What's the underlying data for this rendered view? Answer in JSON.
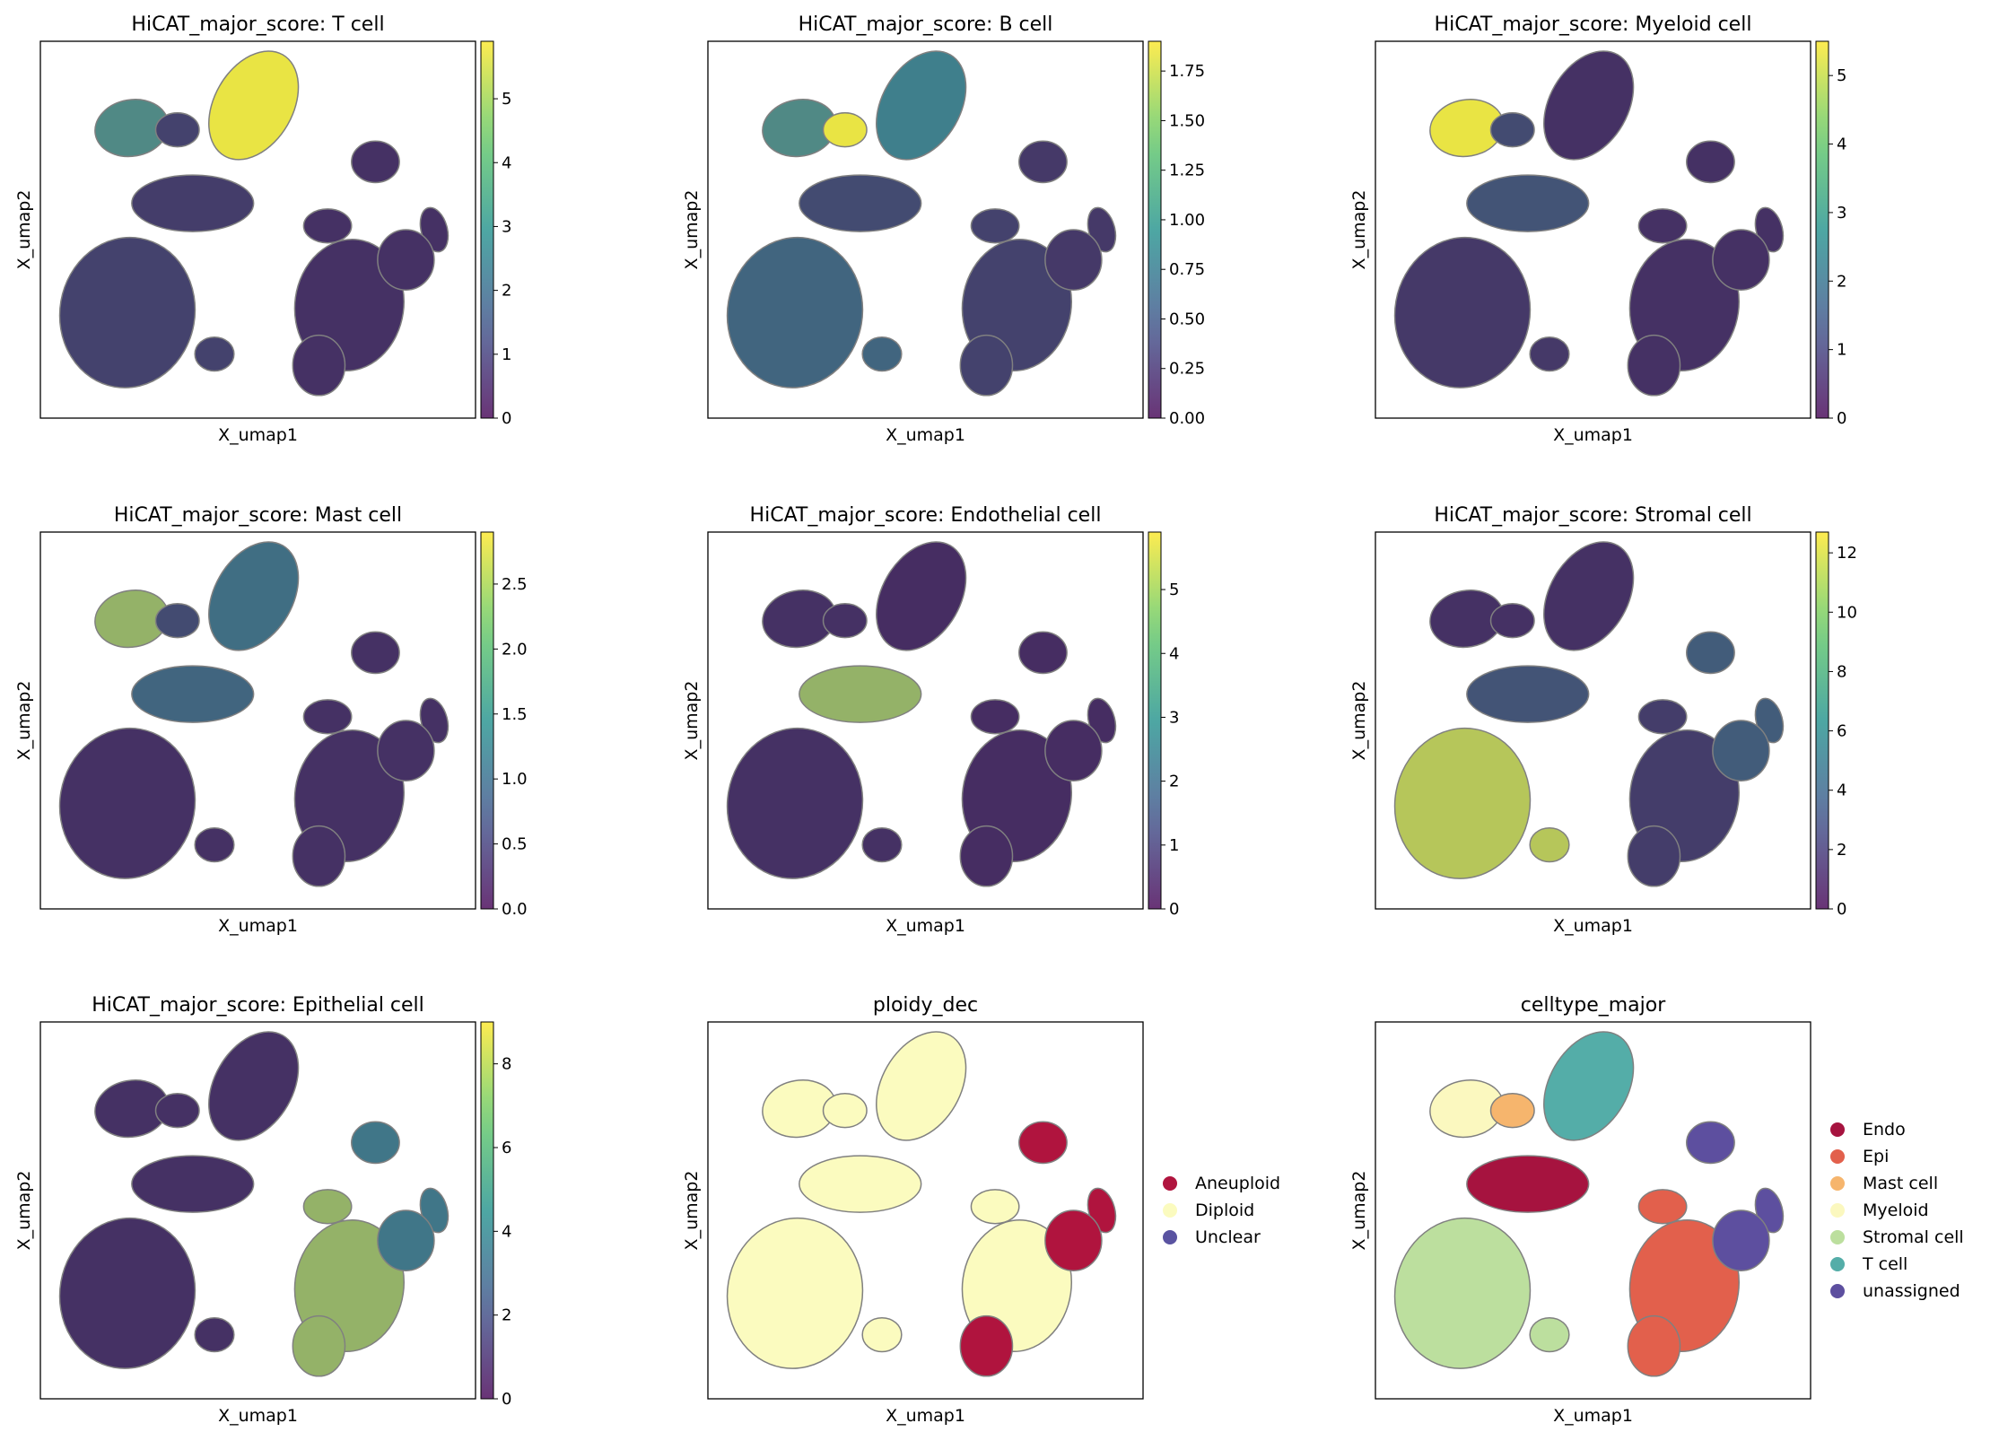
{
  "figure": {
    "xlabel": "X_umap1",
    "ylabel": "X_umap2",
    "chart_colors": {
      "viridis": [
        "#440154",
        "#3b528b",
        "#21918c",
        "#5ec962",
        "#fde725"
      ],
      "low": "#46285f",
      "mid": "#3f7f8c",
      "high": "#e9e444",
      "outline": "#808080"
    }
  },
  "chart_data": [
    {
      "type": "scatter",
      "title": "HiCAT_major_score: T cell",
      "xlabel": "X_umap1",
      "ylabel": "X_umap2",
      "colorbar": {
        "min": 0,
        "max": 5.9,
        "ticks": [
          "0",
          "1",
          "2",
          "3",
          "4",
          "5"
        ],
        "tick_values": [
          0,
          1,
          2,
          3,
          4,
          5
        ]
      },
      "highlight": {
        "T cell": 1.0,
        "B cell": 0.15,
        "Myeloid": 0.55,
        "Mast": 0.55,
        "Endo": 0.12,
        "Stromal": 0.15,
        "Epi": 0.05,
        "Unclear": 0.05
      }
    },
    {
      "type": "scatter",
      "title": "HiCAT_major_score: B cell",
      "xlabel": "X_umap1",
      "ylabel": "X_umap2",
      "colorbar": {
        "min": 0,
        "max": 1.9,
        "ticks": [
          "0.00",
          "0.25",
          "0.50",
          "0.75",
          "1.00",
          "1.25",
          "1.50",
          "1.75"
        ],
        "tick_values": [
          0,
          0.25,
          0.5,
          0.75,
          1.0,
          1.25,
          1.5,
          1.75
        ]
      },
      "highlight": {
        "T cell": 0.5,
        "B cell": 1.0,
        "Myeloid": 0.55,
        "Mast": 0.5,
        "Endo": 0.2,
        "Stromal": 0.35,
        "Epi": 0.15,
        "Unclear": 0.1
      }
    },
    {
      "type": "scatter",
      "title": "HiCAT_major_score: Myeloid cell",
      "xlabel": "X_umap1",
      "ylabel": "X_umap2",
      "colorbar": {
        "min": 0,
        "max": 5.5,
        "ticks": [
          "0",
          "1",
          "2",
          "3",
          "4",
          "5"
        ],
        "tick_values": [
          0,
          1,
          2,
          3,
          4,
          5
        ]
      },
      "highlight": {
        "T cell": 0.05,
        "B cell": 0.2,
        "Myeloid": 1.0,
        "Mast": 0.3,
        "Endo": 0.25,
        "Stromal": 0.1,
        "Epi": 0.05,
        "Unclear": 0.05
      }
    },
    {
      "type": "scatter",
      "title": "HiCAT_major_score: Mast cell",
      "xlabel": "X_umap1",
      "ylabel": "X_umap2",
      "colorbar": {
        "min": 0,
        "max": 2.9,
        "ticks": [
          "0.0",
          "0.5",
          "1.0",
          "1.5",
          "2.0",
          "2.5"
        ],
        "tick_values": [
          0,
          0.5,
          1.0,
          1.5,
          2.0,
          2.5
        ]
      },
      "highlight": {
        "T cell": 0.4,
        "B cell": 0.2,
        "Myeloid": 0.75,
        "Mast": 1.0,
        "Endo": 0.35,
        "Stromal": 0.05,
        "Epi": 0.05,
        "Unclear": 0.05
      }
    },
    {
      "type": "scatter",
      "title": "HiCAT_major_score: Endothelial cell",
      "xlabel": "X_umap1",
      "ylabel": "X_umap2",
      "colorbar": {
        "min": 0,
        "max": 5.9,
        "ticks": [
          "0",
          "1",
          "2",
          "3",
          "4",
          "5"
        ],
        "tick_values": [
          0,
          1,
          2,
          3,
          4,
          5
        ]
      },
      "highlight": {
        "T cell": 0.03,
        "B cell": 0.05,
        "Myeloid": 0.05,
        "Mast": 0.05,
        "Endo": 0.75,
        "Stromal": 0.05,
        "Epi": 0.03,
        "Unclear": 0.03
      }
    },
    {
      "type": "scatter",
      "title": "HiCAT_major_score: Stromal cell",
      "xlabel": "X_umap1",
      "ylabel": "X_umap2",
      "colorbar": {
        "min": 0,
        "max": 12.7,
        "ticks": [
          "0",
          "2",
          "4",
          "6",
          "8",
          "10",
          "12"
        ],
        "tick_values": [
          0,
          2,
          4,
          6,
          8,
          10,
          12
        ]
      },
      "highlight": {
        "T cell": 0.05,
        "B cell": 0.05,
        "Myeloid": 0.05,
        "Mast": 0.05,
        "Endo": 0.25,
        "Stromal": 0.85,
        "Epi": 0.12,
        "Unclear": 0.3
      }
    },
    {
      "type": "scatter",
      "title": "HiCAT_major_score: Epithelial cell",
      "xlabel": "X_umap1",
      "ylabel": "X_umap2",
      "colorbar": {
        "min": 0,
        "max": 9,
        "ticks": [
          "0",
          "2",
          "4",
          "6",
          "8"
        ],
        "tick_values": [
          0,
          2,
          4,
          6,
          8
        ]
      },
      "highlight": {
        "T cell": 0.05,
        "B cell": 0.05,
        "Myeloid": 0.05,
        "Mast": 0.05,
        "Endo": 0.05,
        "Stromal": 0.05,
        "Epi": 0.75,
        "Unclear": 0.45
      }
    },
    {
      "type": "scatter",
      "title": "ploidy_dec",
      "xlabel": "X_umap1",
      "ylabel": "X_umap2",
      "legend": [
        {
          "label": "Aneuploid",
          "color": "#b0143e"
        },
        {
          "label": "Diploid",
          "color": "#fbfbbf"
        },
        {
          "label": "Unclear",
          "color": "#5a53a1"
        }
      ],
      "legend_placement": "right",
      "cluster_colors": {
        "T cell": "#fbfbbf",
        "B cell": "#fbfbbf",
        "Myeloid": "#fbfbbf",
        "Mast": "#fbfbbf",
        "Endo": "#fbfbbf",
        "Stromal": "#fbfbbf",
        "Epi": "#fbfbbf",
        "EpiLow": "#b0143e",
        "Unclear": "#b0143e",
        "Small": "#b0143e"
      }
    },
    {
      "type": "scatter",
      "title": "celltype_major",
      "xlabel": "X_umap1",
      "ylabel": "X_umap2",
      "legend": [
        {
          "label": "Endo",
          "color": "#a6133f"
        },
        {
          "label": "Epi",
          "color": "#e2604c"
        },
        {
          "label": "Mast cell",
          "color": "#f6b56d"
        },
        {
          "label": "Myeloid",
          "color": "#fbf8bf"
        },
        {
          "label": "Stromal cell",
          "color": "#bcdf9e"
        },
        {
          "label": "T cell",
          "color": "#54ada8"
        },
        {
          "label": "unassigned",
          "color": "#5d4f9f"
        }
      ],
      "legend_placement": "right",
      "cluster_colors": {
        "T cell": "#54ada8",
        "B cell": "#f6b56d",
        "Myeloid": "#fbf8bf",
        "Mast": "#f6b56d",
        "Endo": "#a6133f",
        "Stromal": "#bcdf9e",
        "Epi": "#e2604c",
        "EpiLow": "#e2604c",
        "Unclear": "#5d4f9f",
        "Small": "#5d4f9f"
      }
    }
  ]
}
